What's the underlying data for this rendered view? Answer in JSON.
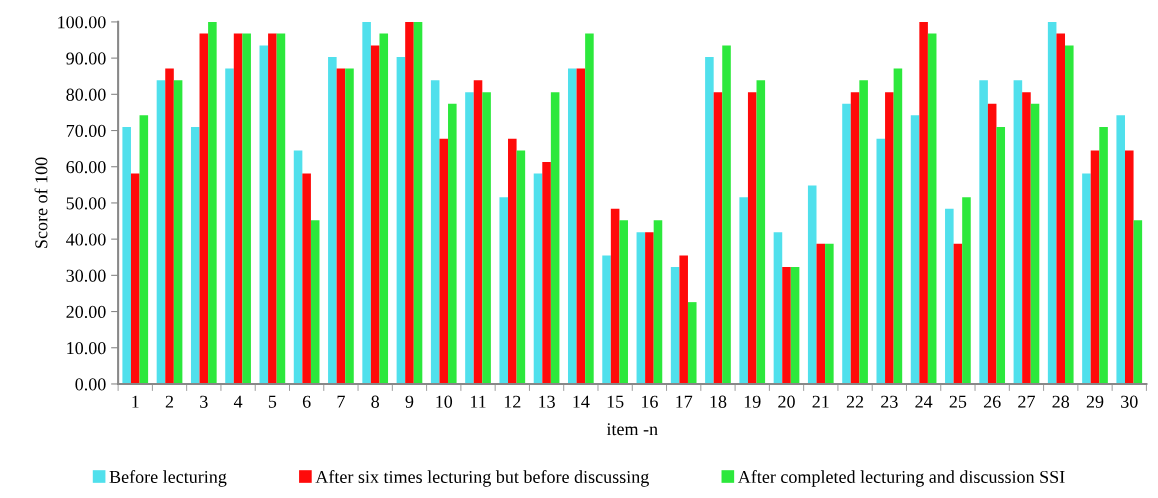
{
  "chart_data": {
    "type": "bar",
    "xlabel": "item -n",
    "ylabel": "Score of 100",
    "categories": [
      "1",
      "2",
      "3",
      "4",
      "5",
      "6",
      "7",
      "8",
      "9",
      "10",
      "11",
      "12",
      "13",
      "14",
      "15",
      "16",
      "17",
      "18",
      "19",
      "20",
      "21",
      "22",
      "23",
      "24",
      "25",
      "26",
      "27",
      "28",
      "29",
      "30"
    ],
    "series": [
      {
        "name": "Before lecturing",
        "color": "#50e0ec",
        "values": [
          71.0,
          83.9,
          71.0,
          87.1,
          93.5,
          64.5,
          90.3,
          100.0,
          90.3,
          83.9,
          80.6,
          51.6,
          58.1,
          87.1,
          35.5,
          41.9,
          32.3,
          90.3,
          51.6,
          41.9,
          54.8,
          77.4,
          67.7,
          74.2,
          48.4,
          83.9,
          83.9,
          100.0,
          58.1,
          74.2
        ]
      },
      {
        "name": "After six times lecturing but before discussing",
        "color": "#ff0a0a",
        "values": [
          58.1,
          87.1,
          96.8,
          96.8,
          96.8,
          58.1,
          87.1,
          93.5,
          100.0,
          67.7,
          83.9,
          67.7,
          61.3,
          87.1,
          48.4,
          41.9,
          35.5,
          80.6,
          80.6,
          32.3,
          38.7,
          80.6,
          80.6,
          100.0,
          38.7,
          77.4,
          80.6,
          96.8,
          64.5,
          64.5
        ]
      },
      {
        "name": "After completed lecturing and discussion SSI",
        "color": "#2ce83c",
        "values": [
          74.2,
          83.9,
          100.0,
          96.8,
          96.8,
          45.2,
          87.1,
          96.8,
          100.0,
          77.4,
          80.6,
          64.5,
          80.6,
          96.8,
          45.2,
          45.2,
          22.6,
          93.5,
          83.9,
          32.3,
          38.7,
          83.9,
          87.1,
          96.8,
          51.6,
          71.0,
          77.4,
          93.5,
          71.0,
          45.2
        ]
      }
    ],
    "ylim": [
      0,
      100
    ],
    "yticks": [
      {
        "value": 0,
        "label": "0.00"
      },
      {
        "value": 10,
        "label": "10.00"
      },
      {
        "value": 20,
        "label": "20.00"
      },
      {
        "value": 30,
        "label": "30.00"
      },
      {
        "value": 40,
        "label": "40.00"
      },
      {
        "value": 50,
        "label": "50.00"
      },
      {
        "value": 60,
        "label": "60.00"
      },
      {
        "value": 70,
        "label": "70.00"
      },
      {
        "value": 80,
        "label": "80.00"
      },
      {
        "value": 90,
        "label": "90.00"
      },
      {
        "value": 100,
        "label": "100.00"
      }
    ],
    "grid": false,
    "legend": "bottom"
  }
}
